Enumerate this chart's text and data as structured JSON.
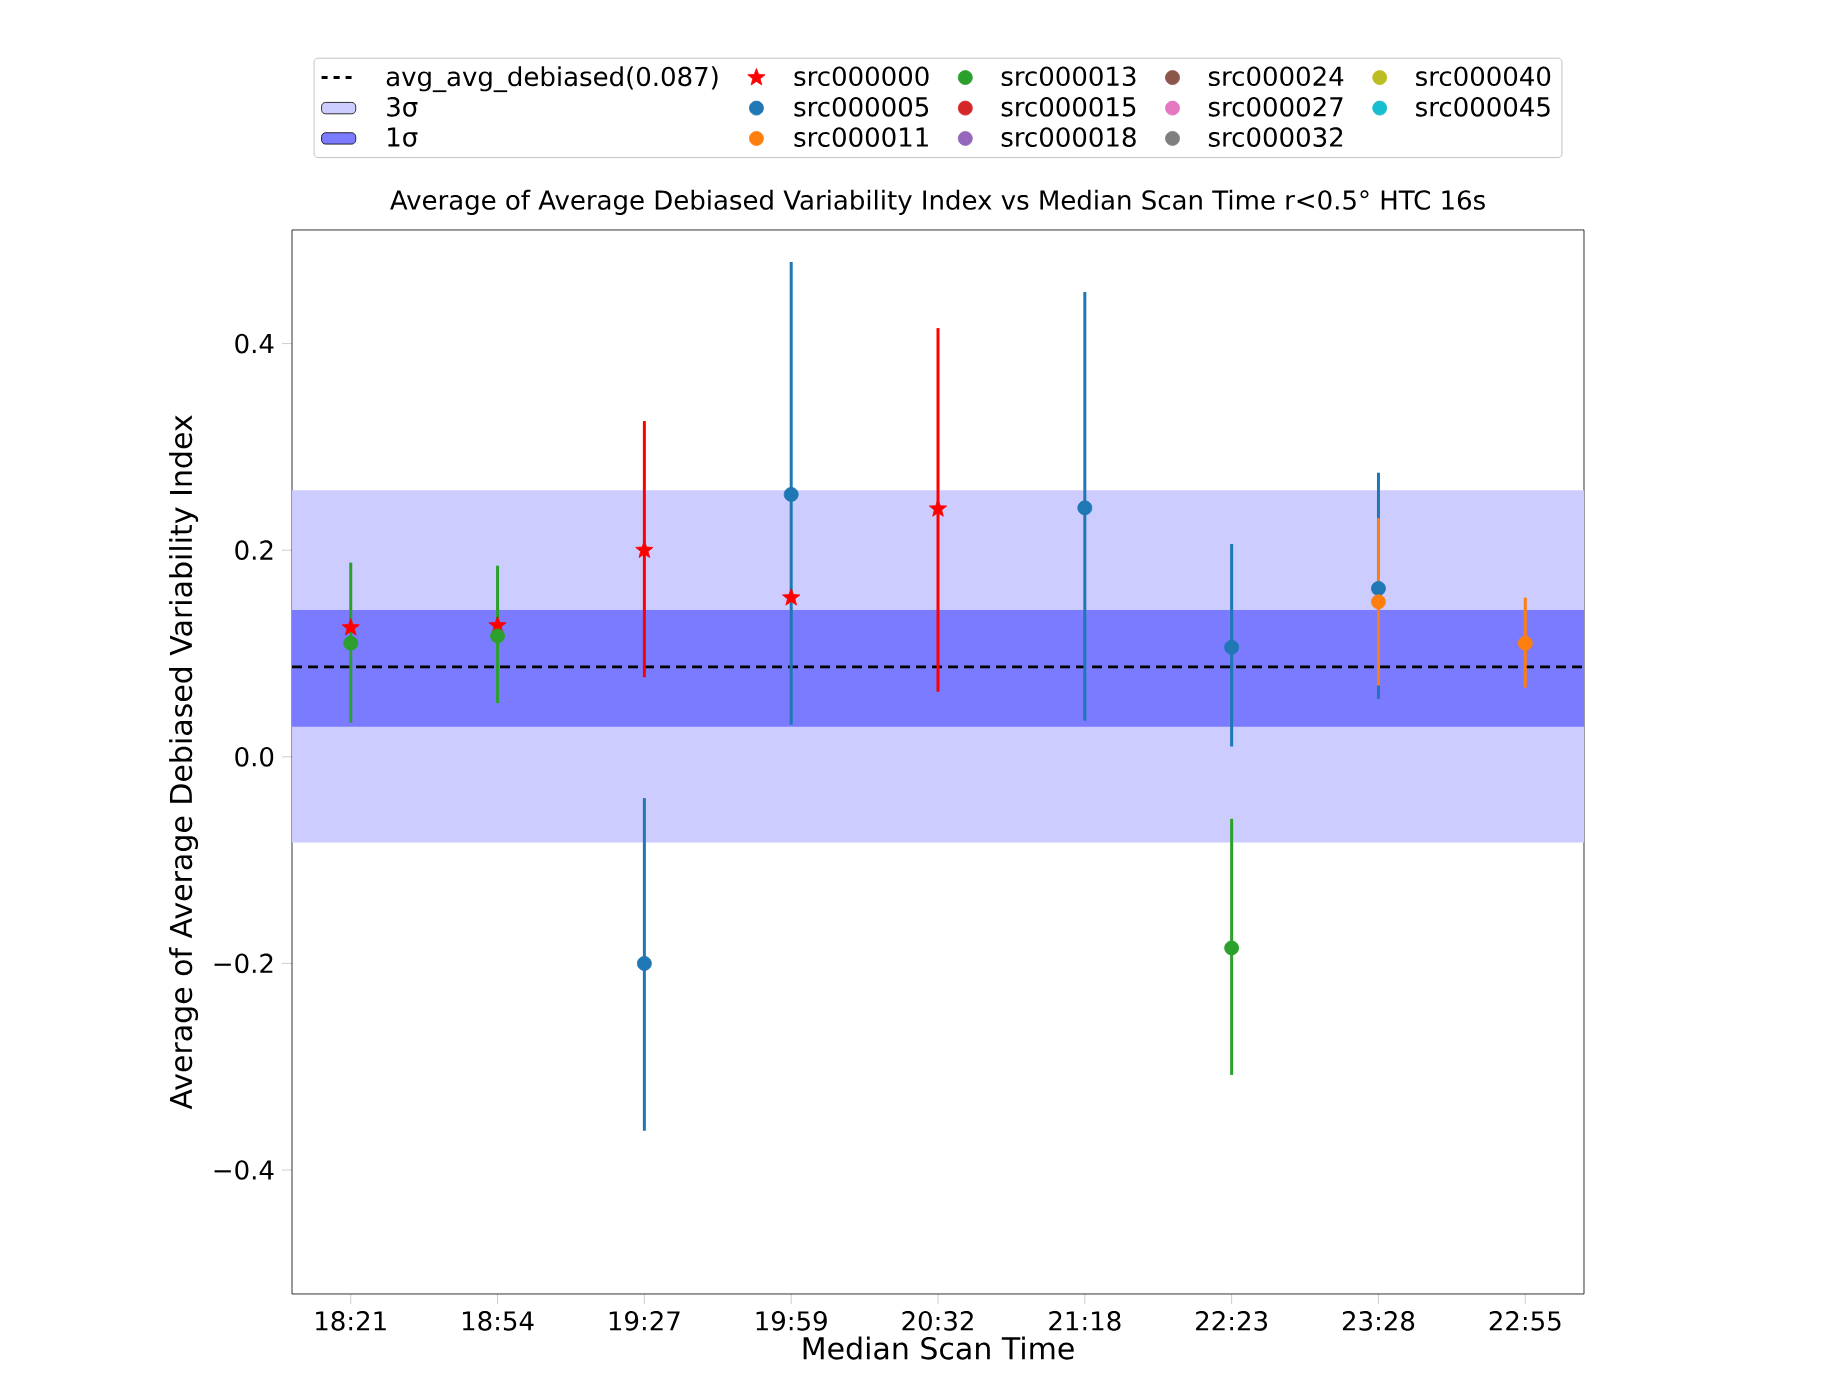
{
  "chart_data": {
    "type": "scatter",
    "title": "Average of Average Debiased Variability Index vs Median Scan Time r<0.5° HTC 16s",
    "xlabel": "Median Scan Time",
    "ylabel": "Average of Average Debiased Variability Index",
    "categories": [
      "18:21",
      "18:54",
      "19:27",
      "19:59",
      "20:32",
      "21:18",
      "22:23",
      "23:28",
      "22:55"
    ],
    "ylim": [
      -0.52,
      0.51
    ],
    "yticks": [
      {
        "value": -0.4,
        "label": "−0.4"
      },
      {
        "value": -0.2,
        "label": "−0.2"
      },
      {
        "value": 0,
        "label": "0.0"
      },
      {
        "value": 0.2,
        "label": "0.2"
      },
      {
        "value": 0.4,
        "label": "0.4"
      }
    ],
    "legend": "top",
    "grid": false,
    "ref_lines": [
      {
        "axis": "y",
        "value": 0.087,
        "label": "avg_avg_debiased(0.087)",
        "color": "#000000",
        "line_style": "dashed"
      }
    ],
    "bands": [
      {
        "axis": "y",
        "from": -0.083,
        "to": 0.258,
        "label": "3σ",
        "color": "#ccccff"
      },
      {
        "axis": "y",
        "from": 0.029,
        "to": 0.142,
        "label": "1σ",
        "color": "#7b7bff"
      }
    ],
    "series": [
      {
        "name": "src000000",
        "color": "#ff0000",
        "marker": "star",
        "values": [
          0.125,
          0.127,
          0.2,
          0.154,
          0.24,
          null,
          null,
          null,
          null
        ],
        "errors": [
          null,
          null,
          [
            0.077,
            0.325
          ],
          null,
          [
            0.063,
            0.415
          ],
          null,
          null,
          null,
          null
        ]
      },
      {
        "name": "src000005",
        "color": "#1f77b4",
        "marker": "circle",
        "values": [
          null,
          null,
          -0.2,
          0.254,
          null,
          0.241,
          0.106,
          0.163,
          null
        ],
        "errors": [
          null,
          null,
          [
            -0.362,
            -0.04
          ],
          [
            0.031,
            0.479
          ],
          null,
          [
            0.035,
            0.45
          ],
          [
            0.01,
            0.206
          ],
          [
            0.056,
            0.275
          ],
          null
        ]
      },
      {
        "name": "src000011",
        "color": "#ff7f0e",
        "marker": "circle",
        "values": [
          null,
          null,
          null,
          null,
          null,
          null,
          null,
          0.15,
          0.11
        ],
        "errors": [
          null,
          null,
          null,
          null,
          null,
          null,
          null,
          [
            0.069,
            0.231
          ],
          [
            0.067,
            0.154
          ]
        ]
      },
      {
        "name": "src000013",
        "color": "#2ca02c",
        "marker": "circle",
        "values": [
          0.11,
          0.117,
          null,
          null,
          null,
          null,
          -0.185,
          null,
          null
        ],
        "errors": [
          [
            0.033,
            0.188
          ],
          [
            0.052,
            0.185
          ],
          null,
          null,
          null,
          null,
          [
            -0.308,
            -0.06
          ],
          null,
          null
        ]
      },
      {
        "name": "src000015",
        "color": "#d62728",
        "marker": "circle",
        "values": [
          null,
          null,
          null,
          null,
          null,
          null,
          null,
          null,
          null
        ]
      },
      {
        "name": "src000018",
        "color": "#9467bd",
        "marker": "circle",
        "values": [
          null,
          null,
          null,
          null,
          null,
          null,
          null,
          null,
          null
        ]
      },
      {
        "name": "src000024",
        "color": "#8c564b",
        "marker": "circle",
        "values": [
          null,
          null,
          null,
          null,
          null,
          null,
          null,
          null,
          null
        ]
      },
      {
        "name": "src000027",
        "color": "#e377c2",
        "marker": "circle",
        "values": [
          null,
          null,
          null,
          null,
          null,
          null,
          null,
          null,
          null
        ]
      },
      {
        "name": "src000032",
        "color": "#7f7f7f",
        "marker": "circle",
        "values": [
          null,
          null,
          null,
          null,
          null,
          null,
          null,
          null,
          null
        ]
      },
      {
        "name": "src000040",
        "color": "#bcbd22",
        "marker": "circle",
        "values": [
          null,
          null,
          null,
          null,
          null,
          null,
          null,
          null,
          null
        ]
      },
      {
        "name": "src000045",
        "color": "#17becf",
        "marker": "circle",
        "values": [
          null,
          null,
          null,
          null,
          null,
          null,
          null,
          null,
          null
        ]
      }
    ]
  }
}
